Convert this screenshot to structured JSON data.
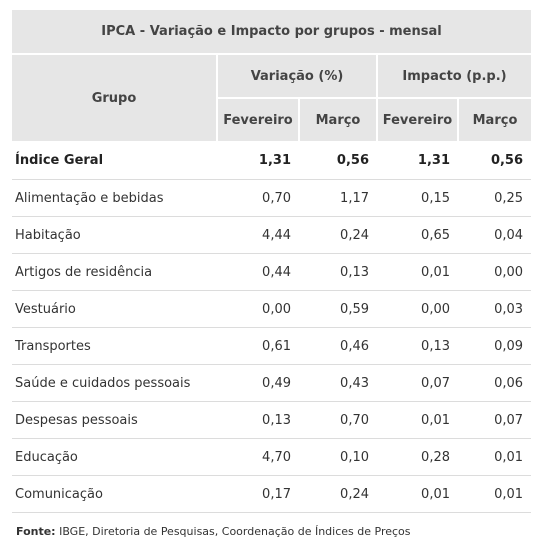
{
  "table": {
    "title": "IPCA - Variação e Impacto por grupos - mensal",
    "header_group": "Grupo",
    "header_variacao": "Variação (%)",
    "header_impacto": "Impacto (p.p.)",
    "sub_fev_var": "Fevereiro",
    "sub_mar_var": "Março",
    "sub_fev_imp": "Fevereiro",
    "sub_mar_imp": "Março",
    "rows": [
      {
        "grupo": "Índice Geral",
        "var_fev": "1,31",
        "var_mar": "0,56",
        "imp_fev": "1,31",
        "imp_mar": "0,56"
      },
      {
        "grupo": "Alimentação e bebidas",
        "var_fev": "0,70",
        "var_mar": "1,17",
        "imp_fev": "0,15",
        "imp_mar": "0,25"
      },
      {
        "grupo": "Habitação",
        "var_fev": "4,44",
        "var_mar": "0,24",
        "imp_fev": "0,65",
        "imp_mar": "0,04"
      },
      {
        "grupo": "Artigos de residência",
        "var_fev": "0,44",
        "var_mar": "0,13",
        "imp_fev": "0,01",
        "imp_mar": "0,00"
      },
      {
        "grupo": "Vestuário",
        "var_fev": "0,00",
        "var_mar": "0,59",
        "imp_fev": "0,00",
        "imp_mar": "0,03"
      },
      {
        "grupo": "Transportes",
        "var_fev": "0,61",
        "var_mar": "0,46",
        "imp_fev": "0,13",
        "imp_mar": "0,09"
      },
      {
        "grupo": "Saúde e cuidados pessoais",
        "var_fev": "0,49",
        "var_mar": "0,43",
        "imp_fev": "0,07",
        "imp_mar": "0,06"
      },
      {
        "grupo": "Despesas pessoais",
        "var_fev": "0,13",
        "var_mar": "0,70",
        "imp_fev": "0,01",
        "imp_mar": "0,07"
      },
      {
        "grupo": "Educação",
        "var_fev": "4,70",
        "var_mar": "0,10",
        "imp_fev": "0,28",
        "imp_mar": "0,01"
      },
      {
        "grupo": "Comunicação",
        "var_fev": "0,17",
        "var_mar": "0,24",
        "imp_fev": "0,01",
        "imp_mar": "0,01"
      }
    ]
  },
  "source": {
    "label": "Fonte:",
    "text": " IBGE, Diretoria de Pesquisas, Coordenação de Índices de Preços"
  },
  "colors": {
    "header_bg": "#e6e6e6",
    "row_border": "#dcdcdc"
  }
}
